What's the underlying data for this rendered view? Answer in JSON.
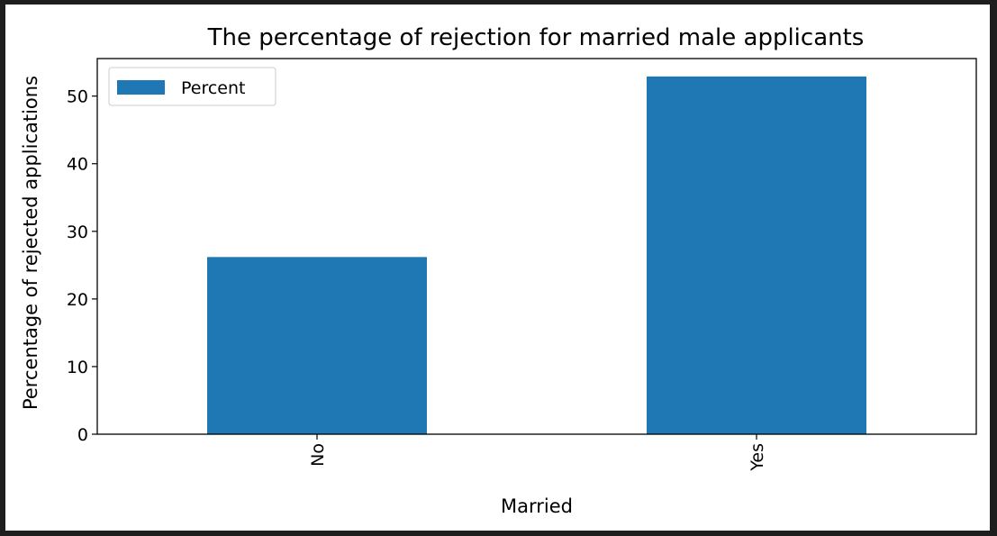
{
  "chart_data": {
    "type": "bar",
    "title": "The percentage of rejection for married male applicants",
    "xlabel": "Married",
    "ylabel": "Percentage of rejected applications",
    "categories": [
      "No",
      "Yes"
    ],
    "series": [
      {
        "name": "Percent",
        "values": [
          26.2,
          52.9
        ]
      }
    ],
    "ylim": [
      0,
      55.55
    ],
    "yticks": [
      0,
      10,
      20,
      30,
      40,
      50
    ],
    "xtick_rotation": "vertical",
    "legend": "top-left",
    "grid": false,
    "colors": {
      "bar": "#1f77b4"
    }
  }
}
